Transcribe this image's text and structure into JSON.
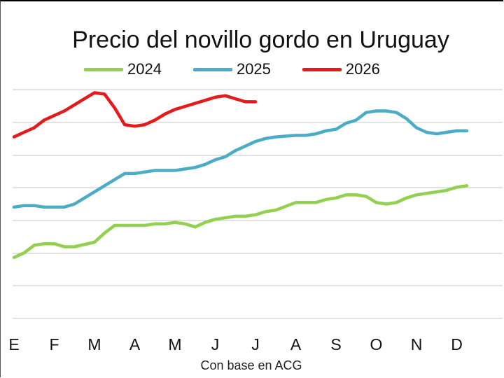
{
  "chart_data": {
    "type": "line",
    "title": "Precio del novillo gordo en Uruguay",
    "source_note": "Con base en ACG",
    "xlabel": "",
    "ylabel": "",
    "categories": [
      "E",
      "F",
      "M",
      "A",
      "M",
      "J",
      "J",
      "A",
      "S",
      "O",
      "N",
      "D"
    ],
    "grid": true,
    "legend": "top",
    "series": [
      {
        "name": "2024",
        "color": "#92D050",
        "x": [
          0,
          0.25,
          0.5,
          0.75,
          1,
          1.25,
          1.5,
          2,
          2.25,
          2.5,
          2.75,
          3,
          3.25,
          3.5,
          3.75,
          4,
          4.25,
          4.5,
          4.75,
          5,
          5.25,
          5.5,
          5.75,
          6,
          6.25,
          6.5,
          7,
          7.25,
          7.5,
          7.75,
          8,
          8.25,
          8.5,
          8.75,
          9,
          9.25,
          9.5,
          9.75,
          10,
          10.25,
          10.5,
          10.75,
          11,
          11.25
        ],
        "y": [
          100,
          103,
          108,
          109,
          109,
          107,
          107,
          110,
          116,
          121,
          121,
          121,
          121,
          122,
          122,
          123,
          122,
          120,
          123,
          125,
          126,
          127,
          127,
          128,
          130,
          131,
          136,
          136,
          136,
          138,
          139,
          141,
          141,
          140,
          136,
          135,
          136,
          139,
          141,
          142,
          143,
          144,
          146,
          147
        ]
      },
      {
        "name": "2025",
        "color": "#4BACC6",
        "x": [
          0,
          0.25,
          0.5,
          0.75,
          1,
          1.25,
          1.5,
          1.75,
          2,
          2.25,
          2.5,
          2.75,
          3,
          3.25,
          3.5,
          3.75,
          4,
          4.25,
          4.5,
          4.75,
          5,
          5.25,
          5.5,
          5.75,
          6,
          6.25,
          6.5,
          7,
          7.25,
          7.5,
          7.75,
          8,
          8.25,
          8.5,
          8.75,
          9,
          9.25,
          9.5,
          9.75,
          10,
          10.25,
          10.5,
          10.75,
          11,
          11.25
        ],
        "y": [
          133,
          134,
          134,
          133,
          133,
          133,
          135,
          139,
          143,
          147,
          151,
          155,
          155,
          156,
          157,
          157,
          157,
          158,
          159,
          161,
          164,
          166,
          170,
          173,
          176,
          178,
          179,
          180,
          180,
          181,
          183,
          184,
          188,
          190,
          195,
          196,
          196,
          195,
          191,
          185,
          182,
          181,
          182,
          183,
          183
        ]
      },
      {
        "name": "2026",
        "color": "#E41A1C",
        "x": [
          0,
          0.25,
          0.5,
          0.75,
          1,
          1.25,
          1.5,
          1.75,
          2,
          2.25,
          2.5,
          2.75,
          3,
          3.25,
          3.5,
          3.75,
          4,
          4.25,
          4.5,
          4.75,
          5,
          5.25,
          5.5,
          5.75,
          6
        ],
        "y": [
          179,
          182,
          185,
          190,
          193,
          196,
          200,
          204,
          208,
          207,
          198,
          187,
          186,
          187,
          190,
          194,
          197,
          199,
          201,
          203,
          205,
          206,
          204,
          202,
          202
        ]
      }
    ]
  }
}
